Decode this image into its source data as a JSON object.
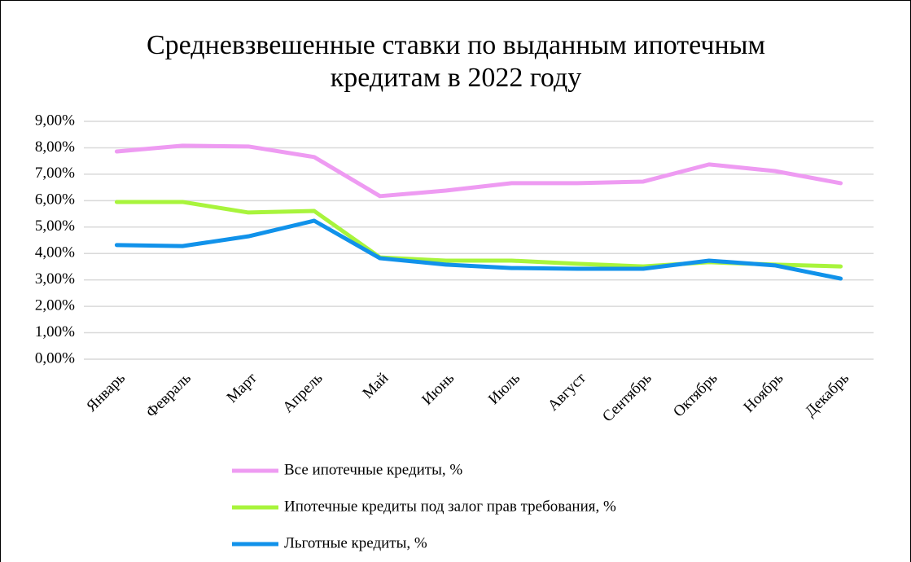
{
  "chart_data": {
    "type": "line",
    "title": "Средневзвешенные ставки по выданным ипотечным кредитам в 2022 году",
    "categories": [
      "Январь",
      "Февраль",
      "Март",
      "Апрель",
      "Май",
      "Июнь",
      "Июль",
      "Август",
      "Сентябрь",
      "Октябрь",
      "Ноябрь",
      "Декабрь"
    ],
    "series": [
      {
        "name": "Все ипотечные кредиты, %",
        "color": "#ee9bf2",
        "values": [
          7.86,
          8.08,
          8.05,
          7.65,
          6.17,
          6.38,
          6.66,
          6.66,
          6.72,
          7.37,
          7.12,
          6.66
        ]
      },
      {
        "name": "Ипотечные кредиты под залог прав требования, %",
        "color": "#a8f43c",
        "values": [
          5.95,
          5.95,
          5.55,
          5.61,
          3.85,
          3.73,
          3.73,
          3.61,
          3.51,
          3.67,
          3.58,
          3.51
        ]
      },
      {
        "name": "Льготные кредиты, %",
        "color": "#1192ea",
        "values": [
          4.32,
          4.28,
          4.65,
          5.24,
          3.82,
          3.58,
          3.45,
          3.42,
          3.42,
          3.73,
          3.55,
          3.05
        ]
      }
    ],
    "ylim": [
      0,
      9
    ],
    "yticks": [
      {
        "value": 0,
        "label": "0,00%"
      },
      {
        "value": 1,
        "label": "1,00%"
      },
      {
        "value": 2,
        "label": "2,00%"
      },
      {
        "value": 3,
        "label": "3,00%"
      },
      {
        "value": 4,
        "label": "4,00%"
      },
      {
        "value": 5,
        "label": "5,00%"
      },
      {
        "value": 6,
        "label": "6,00%"
      },
      {
        "value": 7,
        "label": "7,00%"
      },
      {
        "value": 8,
        "label": "8,00%"
      },
      {
        "value": 9,
        "label": "9,00%"
      }
    ],
    "grid": true,
    "legend": "bottom"
  }
}
